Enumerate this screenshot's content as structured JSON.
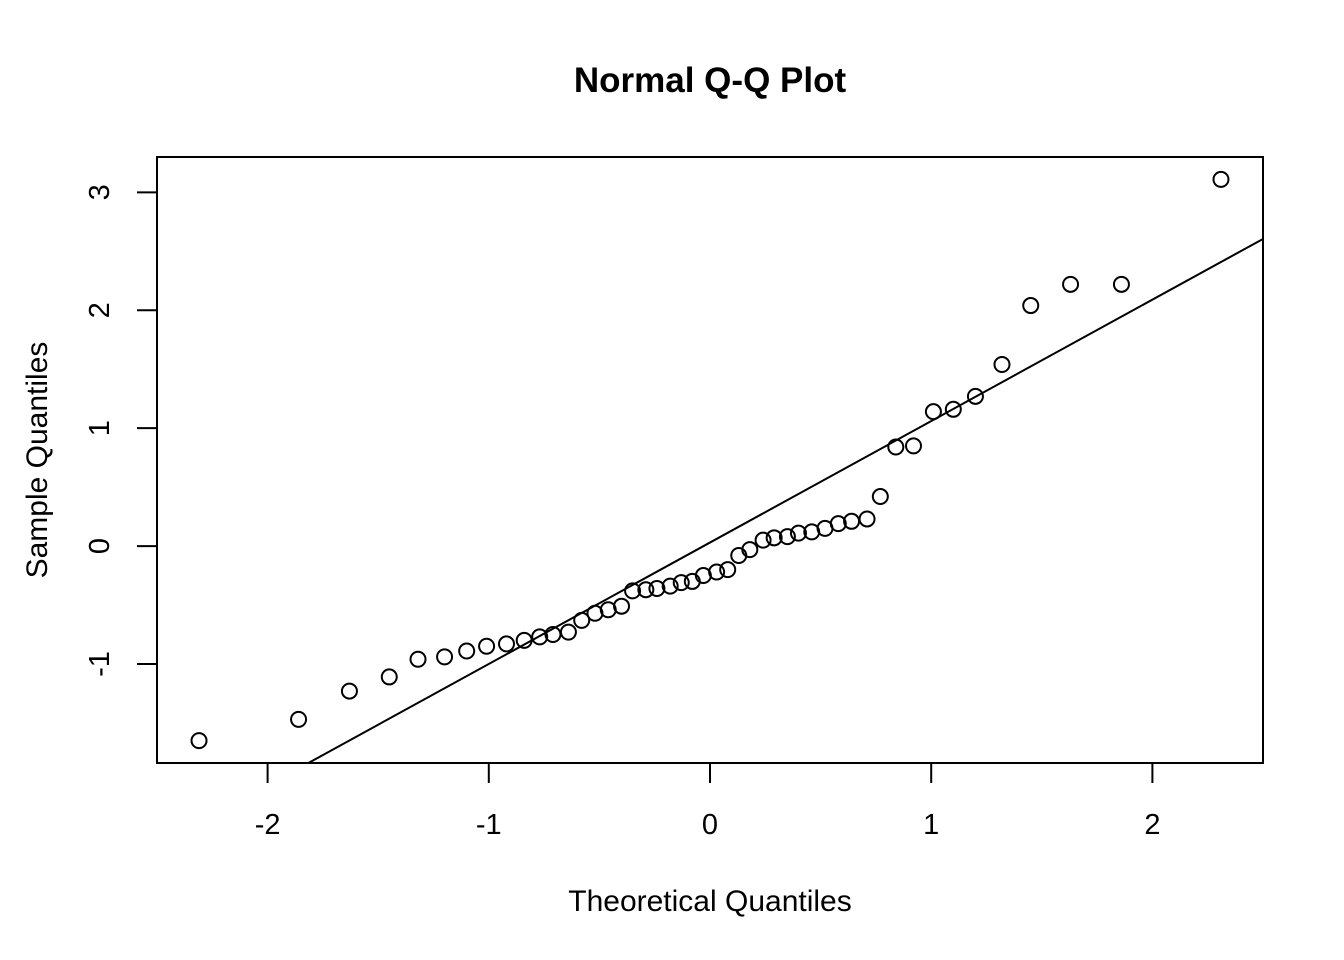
{
  "chart_data": {
    "type": "scatter",
    "title": "Normal Q-Q Plot",
    "xlabel": "Theoretical Quantiles",
    "ylabel": "Sample Quantiles",
    "xlim": [
      -2.5,
      2.5
    ],
    "ylim": [
      -1.84,
      3.3
    ],
    "x_ticks": [
      -2,
      -1,
      0,
      1,
      2
    ],
    "x_tick_labels": [
      "-2",
      "-1",
      "0",
      "1",
      "2"
    ],
    "y_ticks": [
      -1,
      0,
      1,
      2,
      3
    ],
    "y_tick_labels": [
      "-1",
      "0",
      "1",
      "2",
      "3"
    ],
    "grid": false,
    "reference_line": {
      "slope": 1.03,
      "intercept": 0.03
    },
    "points": [
      {
        "x": -2.31,
        "y": -1.65
      },
      {
        "x": -1.86,
        "y": -1.47
      },
      {
        "x": -1.63,
        "y": -1.23
      },
      {
        "x": -1.45,
        "y": -1.11
      },
      {
        "x": -1.32,
        "y": -0.96
      },
      {
        "x": -1.2,
        "y": -0.94
      },
      {
        "x": -1.1,
        "y": -0.89
      },
      {
        "x": -1.01,
        "y": -0.85
      },
      {
        "x": -0.92,
        "y": -0.83
      },
      {
        "x": -0.84,
        "y": -0.8
      },
      {
        "x": -0.77,
        "y": -0.77
      },
      {
        "x": -0.71,
        "y": -0.75
      },
      {
        "x": -0.64,
        "y": -0.73
      },
      {
        "x": -0.58,
        "y": -0.63
      },
      {
        "x": -0.52,
        "y": -0.57
      },
      {
        "x": -0.46,
        "y": -0.54
      },
      {
        "x": -0.4,
        "y": -0.51
      },
      {
        "x": -0.35,
        "y": -0.38
      },
      {
        "x": -0.29,
        "y": -0.37
      },
      {
        "x": -0.24,
        "y": -0.36
      },
      {
        "x": -0.18,
        "y": -0.34
      },
      {
        "x": -0.13,
        "y": -0.31
      },
      {
        "x": -0.08,
        "y": -0.3
      },
      {
        "x": -0.03,
        "y": -0.25
      },
      {
        "x": 0.03,
        "y": -0.22
      },
      {
        "x": 0.08,
        "y": -0.2
      },
      {
        "x": 0.13,
        "y": -0.08
      },
      {
        "x": 0.18,
        "y": -0.03
      },
      {
        "x": 0.24,
        "y": 0.05
      },
      {
        "x": 0.29,
        "y": 0.07
      },
      {
        "x": 0.35,
        "y": 0.08
      },
      {
        "x": 0.4,
        "y": 0.11
      },
      {
        "x": 0.46,
        "y": 0.12
      },
      {
        "x": 0.52,
        "y": 0.15
      },
      {
        "x": 0.58,
        "y": 0.19
      },
      {
        "x": 0.64,
        "y": 0.21
      },
      {
        "x": 0.71,
        "y": 0.23
      },
      {
        "x": 0.77,
        "y": 0.42
      },
      {
        "x": 0.84,
        "y": 0.84
      },
      {
        "x": 0.92,
        "y": 0.85
      },
      {
        "x": 1.01,
        "y": 1.14
      },
      {
        "x": 1.1,
        "y": 1.16
      },
      {
        "x": 1.2,
        "y": 1.27
      },
      {
        "x": 1.32,
        "y": 1.54
      },
      {
        "x": 1.45,
        "y": 2.04
      },
      {
        "x": 1.63,
        "y": 2.22
      },
      {
        "x": 1.86,
        "y": 2.22
      },
      {
        "x": 2.31,
        "y": 3.11
      }
    ]
  }
}
